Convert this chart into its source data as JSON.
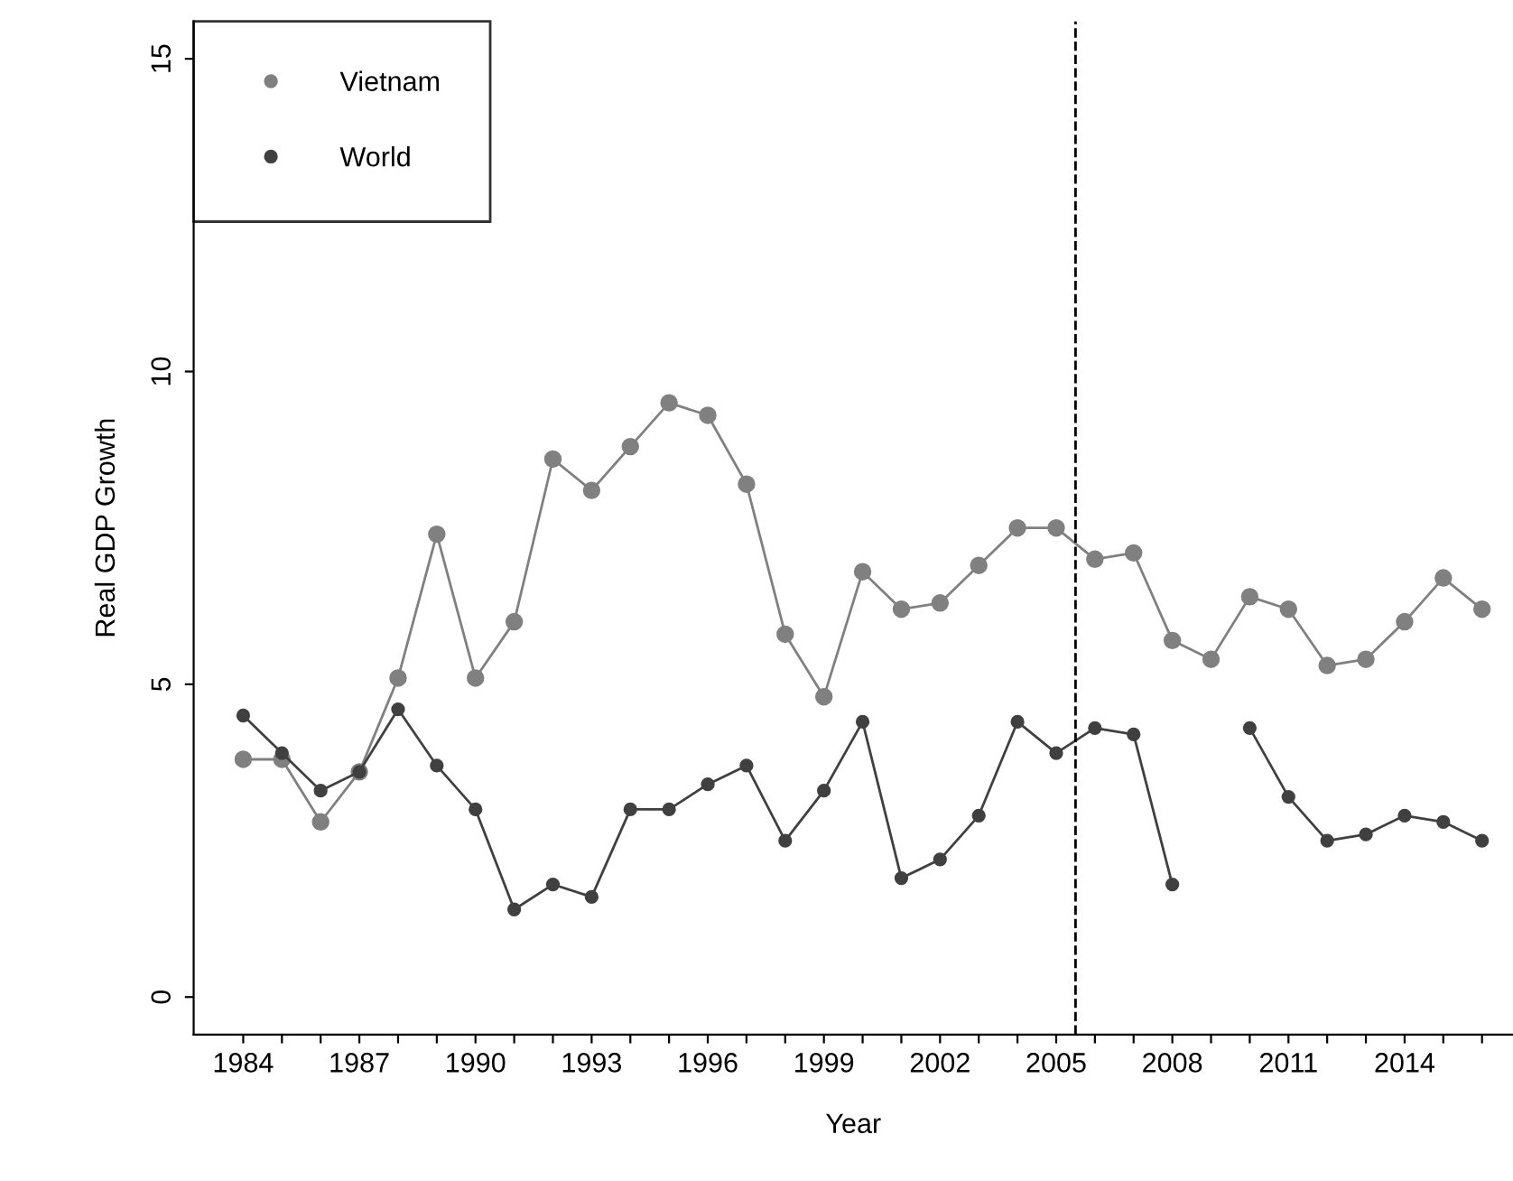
{
  "chart_data": {
    "type": "line",
    "xlabel": "Year",
    "ylabel": "Real GDP Growth",
    "x": [
      1984,
      1985,
      1986,
      1987,
      1988,
      1989,
      1990,
      1991,
      1992,
      1993,
      1994,
      1995,
      1996,
      1997,
      1998,
      1999,
      2000,
      2001,
      2002,
      2003,
      2004,
      2005,
      2006,
      2007,
      2008,
      2009,
      2010,
      2011,
      2012,
      2013,
      2014,
      2015,
      2016
    ],
    "series": [
      {
        "name": "Vietnam",
        "color": "#808080",
        "values": [
          3.8,
          3.8,
          2.8,
          3.6,
          5.1,
          7.4,
          5.1,
          6.0,
          8.6,
          8.1,
          8.8,
          9.5,
          9.3,
          8.2,
          5.8,
          4.8,
          6.8,
          6.2,
          6.3,
          6.9,
          7.5,
          7.5,
          7.0,
          7.1,
          5.7,
          5.4,
          6.4,
          6.2,
          5.3,
          5.4,
          6.0,
          6.7,
          6.2
        ]
      },
      {
        "name": "World",
        "color": "#404040",
        "values": [
          4.5,
          3.9,
          3.3,
          3.6,
          4.6,
          3.7,
          3.0,
          1.4,
          1.8,
          1.6,
          3.0,
          3.0,
          3.4,
          3.7,
          2.5,
          3.3,
          4.4,
          1.9,
          2.2,
          2.9,
          4.4,
          3.9,
          4.3,
          4.2,
          1.8,
          null,
          4.3,
          3.2,
          2.5,
          2.6,
          2.9,
          2.8,
          2.5
        ]
      }
    ],
    "xlim": [
      1982.72,
      2016.8
    ],
    "ylim": [
      -0.6,
      15.6
    ],
    "xticks": [
      1984,
      {
        "value": 1985,
        "label": null
      },
      {
        "value": 1986,
        "label": null
      },
      1987,
      {
        "value": 1988,
        "label": null
      },
      {
        "value": 1989,
        "label": null
      },
      1990,
      {
        "value": 1991,
        "label": null
      },
      {
        "value": 1992,
        "label": null
      },
      1993,
      {
        "value": 1994,
        "label": null
      },
      {
        "value": 1995,
        "label": null
      },
      1996,
      {
        "value": 1997,
        "label": null
      },
      {
        "value": 1998,
        "label": null
      },
      1999,
      {
        "value": 2000,
        "label": null
      },
      {
        "value": 2001,
        "label": null
      },
      2002,
      {
        "value": 2003,
        "label": null
      },
      {
        "value": 2004,
        "label": null
      },
      2005,
      {
        "value": 2006,
        "label": null
      },
      {
        "value": 2007,
        "label": null
      },
      2008,
      {
        "value": 2009,
        "label": null
      },
      {
        "value": 2010,
        "label": null
      },
      2011,
      {
        "value": 2012,
        "label": null
      },
      {
        "value": 2013,
        "label": null
      },
      2014,
      {
        "value": 2015,
        "label": null
      },
      {
        "value": 2016,
        "label": null
      }
    ],
    "yticks": [
      0,
      5,
      10,
      15
    ],
    "ref_lines": [
      {
        "axis": "x",
        "value": 2005.5,
        "line_style": "dashed",
        "color": "#000000"
      }
    ],
    "marker": "circle",
    "line_style": "solid",
    "legend": "top left",
    "grid": false
  }
}
